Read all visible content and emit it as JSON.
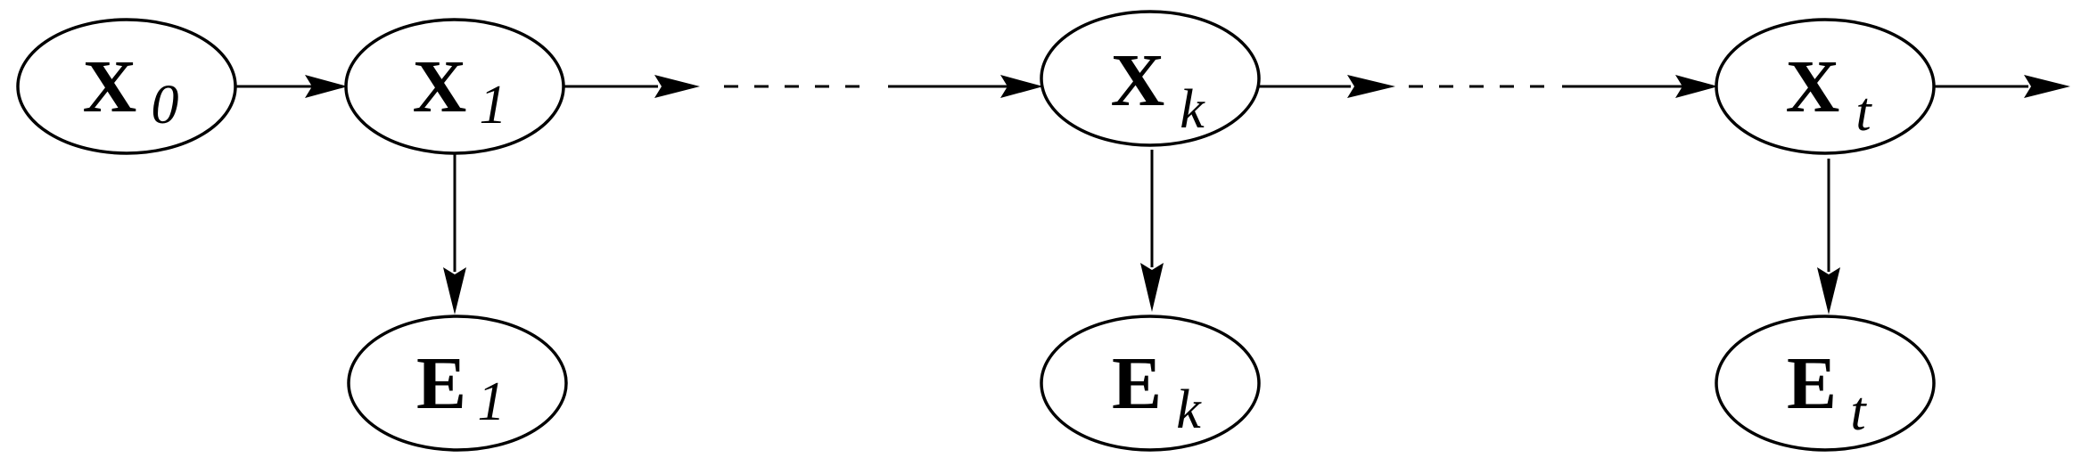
{
  "nodes": [
    {
      "id": "x0",
      "main": "X",
      "sub": "0"
    },
    {
      "id": "x1",
      "main": "X",
      "sub": "1"
    },
    {
      "id": "xk",
      "main": "X",
      "sub": "k"
    },
    {
      "id": "xt",
      "main": "X",
      "sub": "t"
    },
    {
      "id": "e1",
      "main": "E",
      "sub": "1"
    },
    {
      "id": "ek",
      "main": "E",
      "sub": "k"
    },
    {
      "id": "et",
      "main": "E",
      "sub": "t"
    }
  ],
  "edges": [
    {
      "from": "x0",
      "to": "x1"
    },
    {
      "from": "x1",
      "to": "e1"
    },
    {
      "from": "xk",
      "to": "ek"
    },
    {
      "from": "xt",
      "to": "et"
    },
    {
      "from": "xk",
      "to": "xt",
      "style": "ellipsis"
    },
    {
      "from": "x1",
      "to": "xk",
      "style": "ellipsis"
    }
  ],
  "colors": {
    "stroke": "#000000",
    "background": "#ffffff"
  }
}
